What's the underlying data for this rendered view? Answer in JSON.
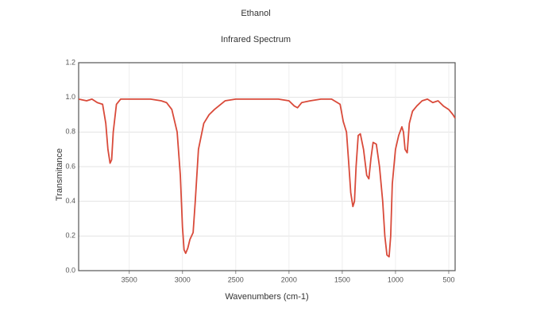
{
  "chart_data": {
    "type": "line",
    "title": "Ethanol",
    "subtitle": "Infrared Spectrum",
    "x_label": "Wavenumbers (cm-1)",
    "y_label": "Transmitance",
    "x": [
      3975,
      3900,
      3850,
      3800,
      3750,
      3720,
      3700,
      3680,
      3665,
      3650,
      3620,
      3580,
      3500,
      3400,
      3300,
      3200,
      3150,
      3100,
      3050,
      3020,
      3000,
      2985,
      2970,
      2950,
      2930,
      2900,
      2880,
      2850,
      2800,
      2750,
      2700,
      2600,
      2500,
      2300,
      2100,
      2000,
      1950,
      1920,
      1880,
      1800,
      1700,
      1600,
      1520,
      1490,
      1460,
      1440,
      1420,
      1400,
      1385,
      1370,
      1350,
      1330,
      1300,
      1270,
      1250,
      1230,
      1210,
      1180,
      1150,
      1120,
      1100,
      1080,
      1060,
      1045,
      1030,
      1000,
      970,
      940,
      925,
      910,
      890,
      870,
      840,
      800,
      750,
      700,
      650,
      600,
      550,
      500,
      460,
      440
    ],
    "series": [
      {
        "name": "Ethanol",
        "color": "#d94a3a",
        "values": [
          0.99,
          0.98,
          0.99,
          0.97,
          0.96,
          0.85,
          0.7,
          0.62,
          0.64,
          0.8,
          0.96,
          0.99,
          0.99,
          0.99,
          0.99,
          0.98,
          0.97,
          0.93,
          0.8,
          0.55,
          0.25,
          0.12,
          0.1,
          0.13,
          0.18,
          0.22,
          0.4,
          0.7,
          0.85,
          0.9,
          0.93,
          0.98,
          0.99,
          0.99,
          0.99,
          0.98,
          0.95,
          0.94,
          0.97,
          0.98,
          0.99,
          0.99,
          0.96,
          0.86,
          0.8,
          0.63,
          0.45,
          0.37,
          0.4,
          0.6,
          0.78,
          0.79,
          0.7,
          0.55,
          0.53,
          0.65,
          0.74,
          0.73,
          0.6,
          0.4,
          0.2,
          0.09,
          0.08,
          0.2,
          0.5,
          0.7,
          0.78,
          0.83,
          0.8,
          0.7,
          0.68,
          0.85,
          0.92,
          0.95,
          0.98,
          0.99,
          0.97,
          0.98,
          0.95,
          0.93,
          0.9,
          0.88
        ]
      }
    ],
    "xlim": [
      3975,
      440
    ],
    "xticks": [
      3500,
      3000,
      2500,
      2000,
      1500,
      1000,
      500
    ],
    "ylim": [
      0,
      1.2
    ],
    "yticks": [
      {
        "value": 0,
        "label": "0.0"
      },
      0.2,
      0.4,
      0.6,
      0.8,
      {
        "value": 1,
        "label": "1.0"
      },
      1.2
    ],
    "grid": true
  }
}
